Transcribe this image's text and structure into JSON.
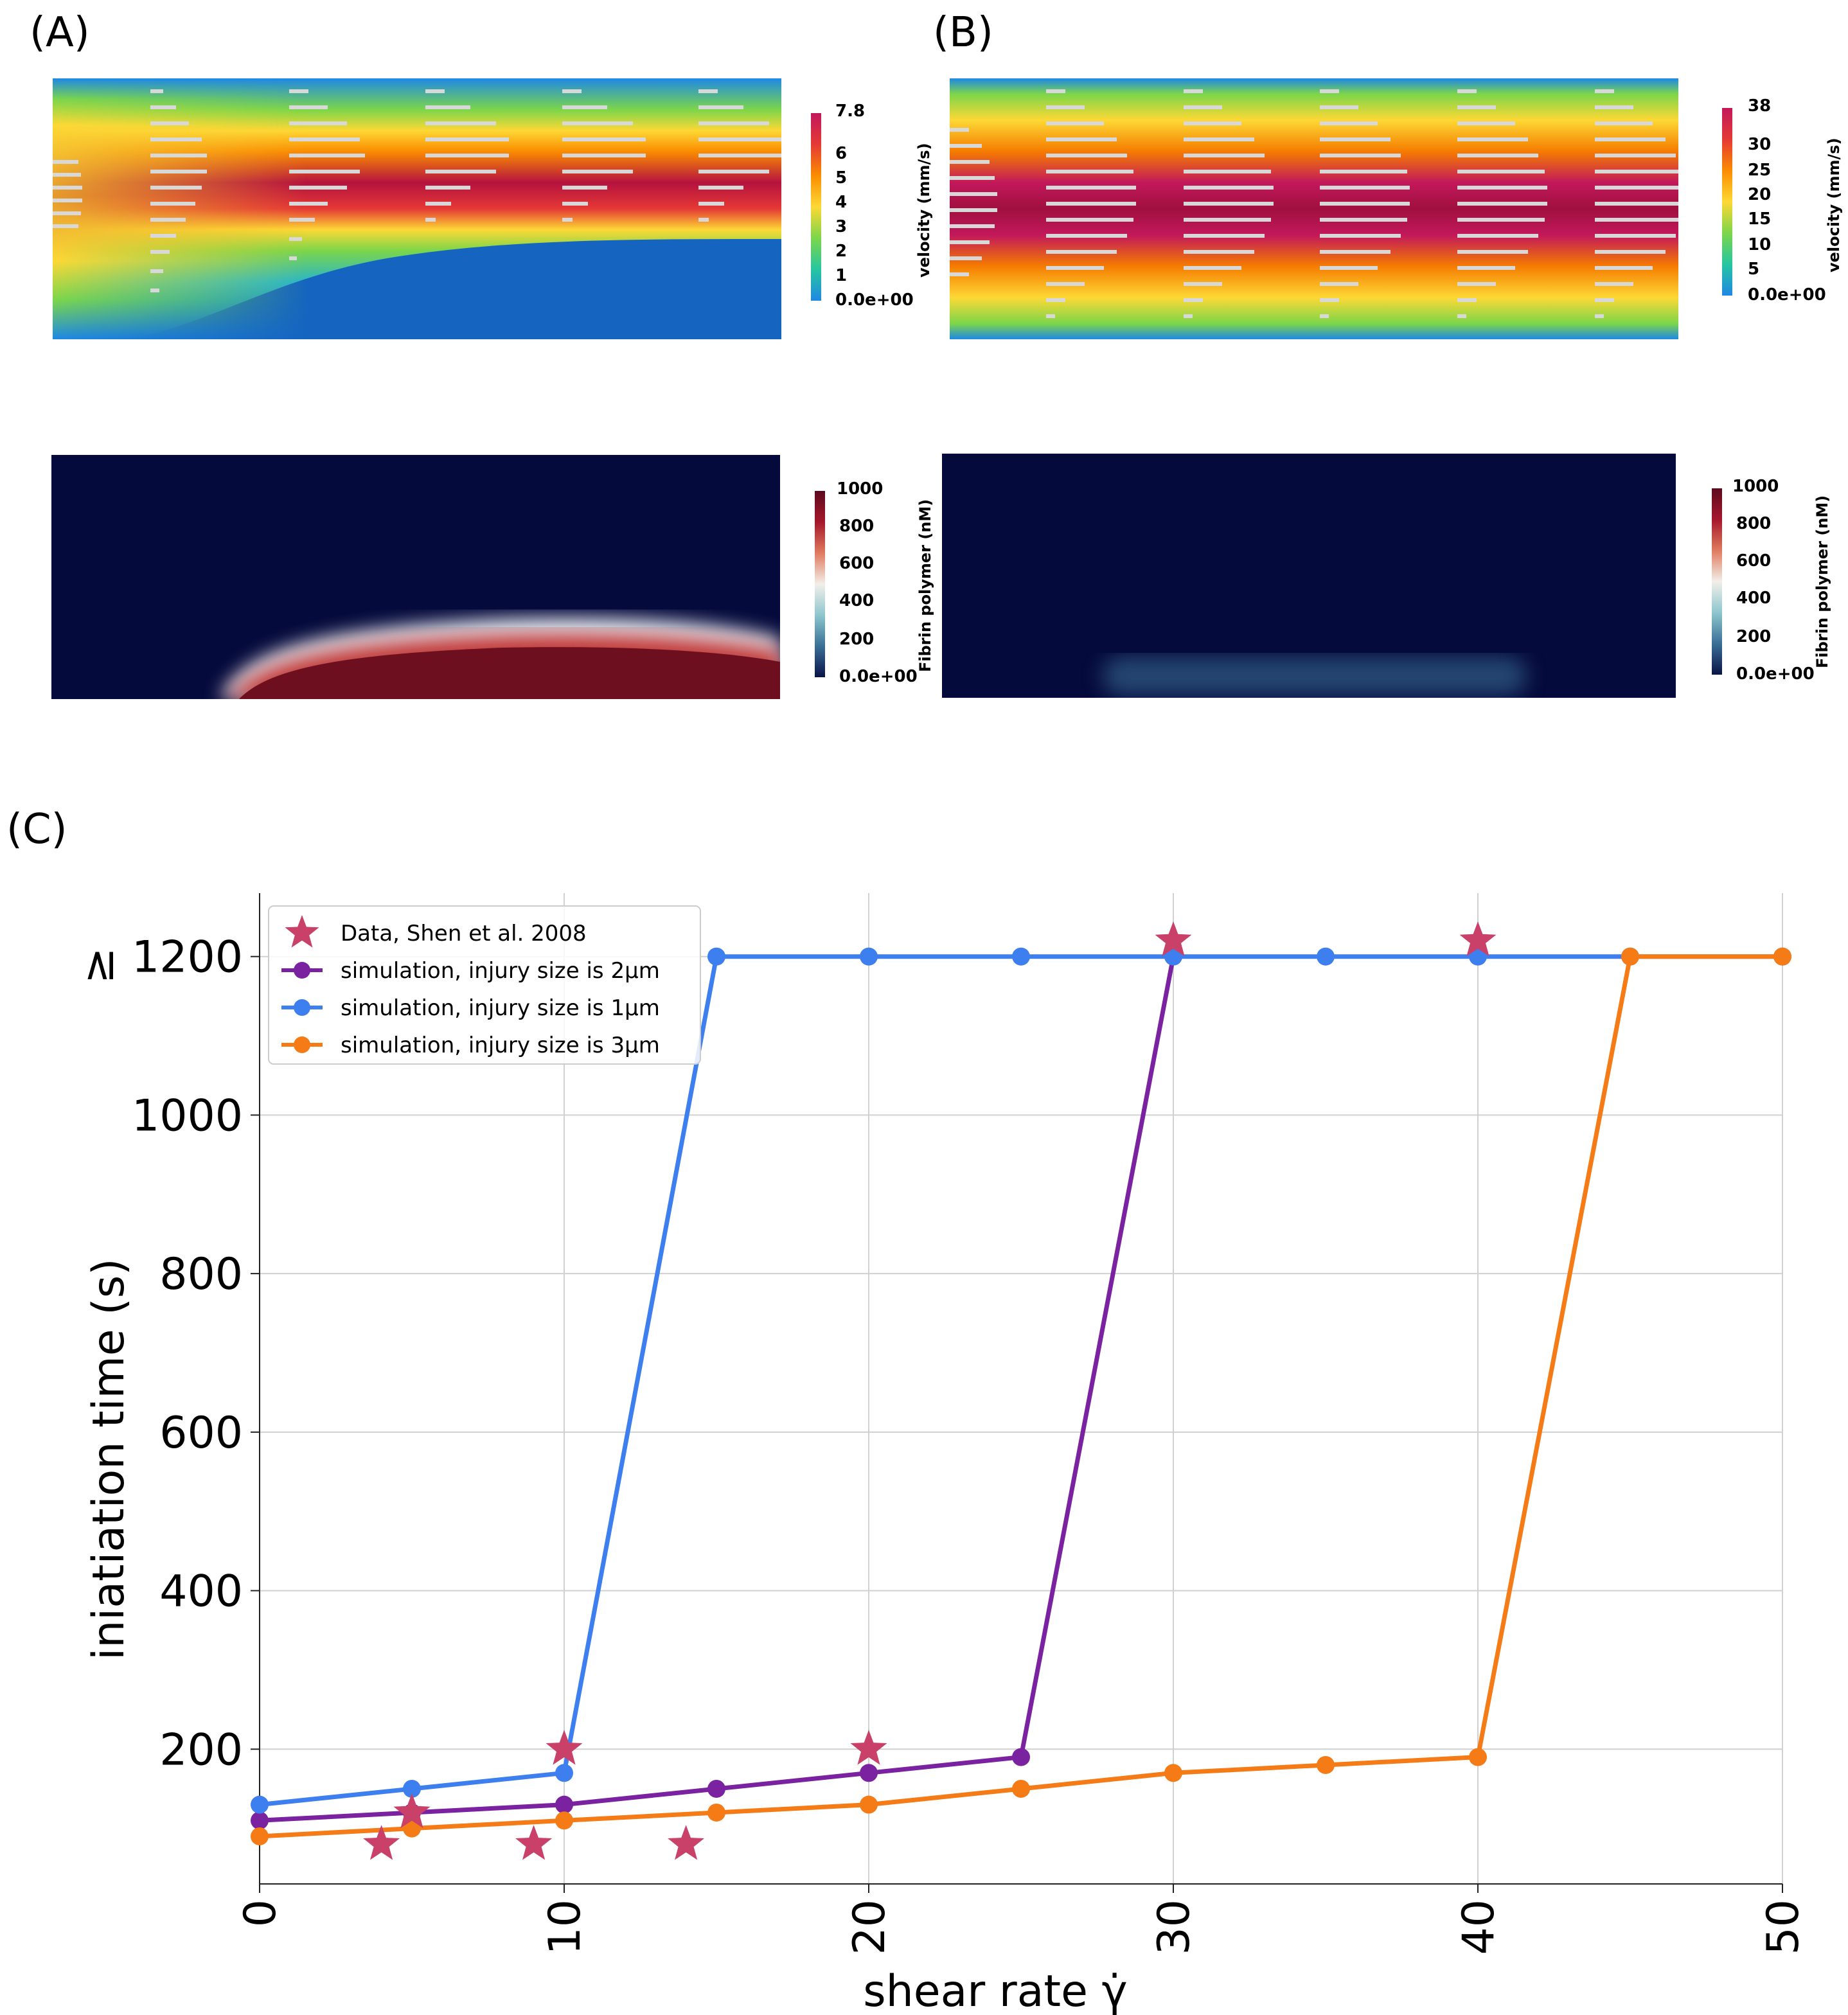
{
  "panels": {
    "a": "(A)",
    "b": "(B)",
    "c": "(C)"
  },
  "field_a": {
    "velocity_bar": {
      "title": "velocity (mm/s)",
      "ticks": [
        "7.8",
        "6",
        "5",
        "4",
        "3",
        "2",
        "1",
        "0.0e+00"
      ],
      "colors": [
        "#c2185b",
        "#e53935",
        "#fb8c00",
        "#fdd835",
        "#7cd64a",
        "#26c6a0",
        "#1e88e5"
      ]
    },
    "fibrin_bar": {
      "title": "Fibrin polymer (nM)",
      "ticks": [
        "1000",
        "800",
        "600",
        "400",
        "200",
        "0.0e+00"
      ],
      "colors": [
        "#5e0a1e",
        "#a5182c",
        "#e07a5f",
        "#f2efe9",
        "#8ec6cf",
        "#3a6f96",
        "#0a1446"
      ]
    }
  },
  "field_b": {
    "velocity_bar": {
      "title": "velocity (mm/s)",
      "ticks": [
        "38",
        "30",
        "25",
        "20",
        "15",
        "10",
        "5",
        "0.0e+00"
      ],
      "colors": [
        "#c2185b",
        "#e53935",
        "#fb8c00",
        "#fdd835",
        "#7cd64a",
        "#26c6a0",
        "#1e88e5"
      ]
    },
    "fibrin_bar": {
      "title": "Fibrin polymer (nM)",
      "ticks": [
        "1000",
        "800",
        "600",
        "400",
        "200",
        "0.0e+00"
      ],
      "colors": [
        "#5e0a1e",
        "#a5182c",
        "#e07a5f",
        "#f2efe9",
        "#8ec6cf",
        "#3a6f96",
        "#0a1446"
      ]
    }
  },
  "chart_data": {
    "type": "line",
    "xlabel": "shear rate γ̇",
    "ylabel": "iniatiation time (s)",
    "y_top_marker": "≥",
    "xlim": [
      0,
      50
    ],
    "ylim": [
      30,
      1280
    ],
    "xticks": [
      0,
      10,
      20,
      30,
      40,
      50
    ],
    "yticks": [
      200,
      400,
      600,
      800,
      1000,
      1200
    ],
    "grid": true,
    "legend_position": "top-left",
    "series": [
      {
        "name": "Data, Shen et al. 2008",
        "marker": "star",
        "color": "#c94168",
        "line": false,
        "x": [
          4,
          5,
          9,
          10,
          14,
          20,
          30,
          40
        ],
        "y": [
          80,
          120,
          80,
          200,
          80,
          200,
          1220,
          1220
        ]
      },
      {
        "name": "simulation, injury size is 2μm",
        "marker": "circle",
        "color": "#7b22a0",
        "line": true,
        "x": [
          0,
          5,
          10,
          15,
          20,
          25,
          30
        ],
        "y": [
          110,
          120,
          130,
          150,
          170,
          190,
          1200
        ]
      },
      {
        "name": "simulation, injury size is 1μm",
        "marker": "circle",
        "color": "#3e7fef",
        "line": true,
        "x": [
          0,
          5,
          10,
          15,
          20,
          25,
          30,
          35,
          40,
          45,
          50
        ],
        "y": [
          130,
          150,
          170,
          1200,
          1200,
          1200,
          1200,
          1200,
          1200,
          1200,
          1200
        ]
      },
      {
        "name": "simulation, injury size is 3μm",
        "marker": "circle",
        "color": "#f57b16",
        "line": true,
        "x": [
          0,
          5,
          10,
          15,
          20,
          25,
          30,
          35,
          40,
          45,
          50
        ],
        "y": [
          90,
          100,
          110,
          120,
          130,
          150,
          170,
          180,
          190,
          1200,
          1200
        ]
      }
    ]
  }
}
